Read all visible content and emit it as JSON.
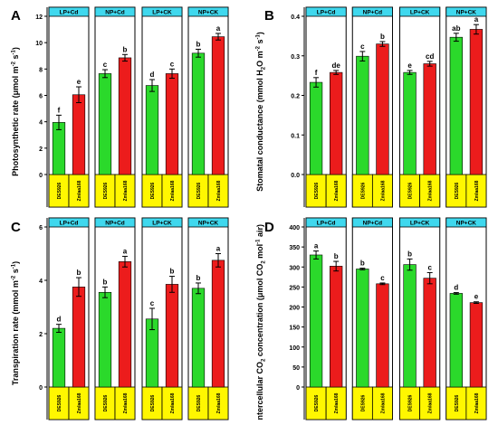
{
  "chart_data": [
    {
      "type": "bar",
      "panel_letter": "A",
      "ylabel_parts": [
        "Photosynthetic rate (μmol m",
        "-2",
        " s",
        "-1",
        ")"
      ],
      "ylim": [
        0,
        12
      ],
      "yticks": [
        "0",
        "2",
        "4",
        "6",
        "8",
        "10",
        "12"
      ],
      "groups": [
        "LP+Cd",
        "NP+Cd",
        "LP+CK",
        "NP+CK"
      ],
      "categories": [
        "DES926",
        "Zmlaa168"
      ],
      "values": [
        [
          3.95,
          6.05
        ],
        [
          7.65,
          8.85
        ],
        [
          6.75,
          7.65
        ],
        [
          9.2,
          10.45
        ]
      ],
      "errors": [
        [
          0.55,
          0.6
        ],
        [
          0.3,
          0.25
        ],
        [
          0.45,
          0.35
        ],
        [
          0.3,
          0.25
        ]
      ],
      "letters": [
        [
          "f",
          "e"
        ],
        [
          "c",
          "b"
        ],
        [
          "d",
          "c"
        ],
        [
          "b",
          "a"
        ]
      ]
    },
    {
      "type": "bar",
      "panel_letter": "B",
      "ylabel_parts": [
        "Stomatal conductance (mmol H",
        "2",
        "O m",
        "-2",
        " s",
        "-1",
        ")"
      ],
      "ylim": [
        0,
        0.4
      ],
      "yticks": [
        "0.0",
        "0.1",
        "0.2",
        "0.3",
        "0.4"
      ],
      "groups": [
        "LP+Cd",
        "NP+Cd",
        "LP+CK",
        "NP+CK"
      ],
      "categories": [
        "DES926",
        "Zmlaa168"
      ],
      "values": [
        [
          0.233,
          0.258
        ],
        [
          0.299,
          0.33
        ],
        [
          0.258,
          0.28
        ],
        [
          0.347,
          0.367
        ]
      ],
      "errors": [
        [
          0.012,
          0.005
        ],
        [
          0.012,
          0.006
        ],
        [
          0.005,
          0.006
        ],
        [
          0.01,
          0.012
        ]
      ],
      "letters": [
        [
          "f",
          "de"
        ],
        [
          "c",
          "b"
        ],
        [
          "e",
          "cd"
        ],
        [
          "ab",
          "a"
        ]
      ]
    },
    {
      "type": "bar",
      "panel_letter": "C",
      "ylabel_parts": [
        "Transpiration rate (mmol m",
        "-2",
        " s",
        "-1",
        ")"
      ],
      "ylim": [
        0,
        6
      ],
      "yticks": [
        "0",
        "2",
        "4",
        "6"
      ],
      "groups": [
        "LP+Cd",
        "NP+Cd",
        "LP+CK",
        "NP+CK"
      ],
      "categories": [
        "DES926",
        "Zmlaa168"
      ],
      "values": [
        [
          2.2,
          3.75
        ],
        [
          3.55,
          4.7
        ],
        [
          2.55,
          3.85
        ],
        [
          3.7,
          4.75
        ]
      ],
      "errors": [
        [
          0.15,
          0.35
        ],
        [
          0.2,
          0.2
        ],
        [
          0.4,
          0.3
        ],
        [
          0.2,
          0.25
        ]
      ],
      "letters": [
        [
          "d",
          "b"
        ],
        [
          "b",
          "a"
        ],
        [
          "c",
          "b"
        ],
        [
          "b",
          "a"
        ]
      ]
    },
    {
      "type": "bar",
      "panel_letter": "D",
      "ylabel_parts": [
        "Intercellular CO",
        "2",
        " concentration (μmol CO",
        "2",
        " mol",
        "-1",
        " air)"
      ],
      "ylim": [
        0,
        400
      ],
      "yticks": [
        "0",
        "50",
        "100",
        "150",
        "200",
        "250",
        "300",
        "350",
        "400"
      ],
      "groups": [
        "LP+Cd",
        "NP+Cd",
        "LP+CK",
        "NP+CK"
      ],
      "categories": [
        "DES926",
        "Zmlaa168"
      ],
      "values": [
        [
          330,
          302
        ],
        [
          295,
          258
        ],
        [
          306,
          272
        ],
        [
          234,
          211
        ]
      ],
      "errors": [
        [
          10,
          12
        ],
        [
          2,
          2
        ],
        [
          14,
          14
        ],
        [
          2,
          2
        ]
      ],
      "letters": [
        [
          "a",
          "b"
        ],
        [
          "b",
          "c"
        ],
        [
          "b",
          "c"
        ],
        [
          "d",
          "e"
        ]
      ]
    }
  ],
  "colors": {
    "bar_1": "#2bd92b",
    "bar_2": "#ec1c1c",
    "group_header": "#3fd8ee",
    "label_box": "#fff700"
  }
}
